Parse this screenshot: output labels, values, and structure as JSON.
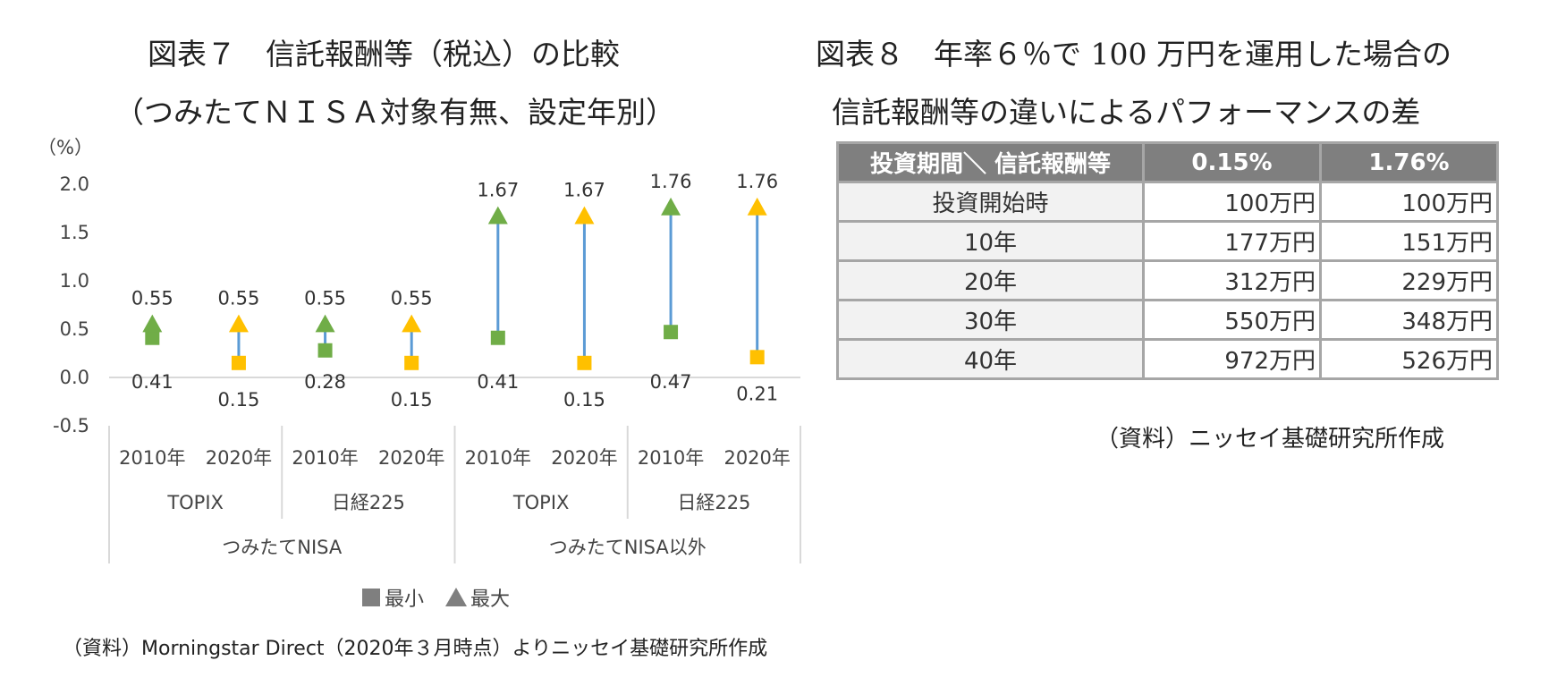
{
  "left_figure": {
    "title_line1": "図表７　信託報酬等（税込）の比較",
    "title_line2": "（つみたてＮＩＳＡ対象有無、設定年別）"
  },
  "right_figure": {
    "title_line1": "図表８　年率６％で 100 万円を運用した場合の",
    "title_line2": "信託報酬等の違いによるパフォーマンスの差"
  },
  "chart_data": {
    "type": "scatter",
    "title": "図表７　信託報酬等（税込）の比較（つみたてＮＩＳＡ対象有無、設定年別）",
    "yunit": "（%）",
    "ylim": [
      -0.5,
      2.0
    ],
    "yticks": [
      "2.0",
      "1.5",
      "1.0",
      "0.5",
      "0.0",
      "-0.5"
    ],
    "ytick_values": [
      2.0,
      1.5,
      1.0,
      0.5,
      0.0,
      -0.5
    ],
    "negative_tick_color": "#c00000",
    "grid": false,
    "legend_position": "bottom",
    "legend": [
      {
        "marker": "square",
        "label": "最小"
      },
      {
        "marker": "triangle",
        "label": "最大"
      }
    ],
    "categories": [
      {
        "year": "2010年",
        "index": "TOPIX",
        "group": "つみたてNISA",
        "min": 0.41,
        "max": 0.55,
        "min_label": "0.41",
        "max_label": "0.55",
        "color": "#70ad47"
      },
      {
        "year": "2020年",
        "index": "TOPIX",
        "group": "つみたてNISA",
        "min": 0.15,
        "max": 0.55,
        "min_label": "0.15",
        "max_label": "0.55",
        "color": "#ffc000"
      },
      {
        "year": "2010年",
        "index": "日経225",
        "group": "つみたてNISA",
        "min": 0.28,
        "max": 0.55,
        "min_label": "0.28",
        "max_label": "0.55",
        "color": "#70ad47"
      },
      {
        "year": "2020年",
        "index": "日経225",
        "group": "つみたてNISA",
        "min": 0.15,
        "max": 0.55,
        "min_label": "0.15",
        "max_label": "0.55",
        "color": "#ffc000"
      },
      {
        "year": "2010年",
        "index": "TOPIX",
        "group": "つみたてNISA以外",
        "min": 0.41,
        "max": 1.67,
        "min_label": "0.41",
        "max_label": "1.67",
        "color": "#70ad47"
      },
      {
        "year": "2020年",
        "index": "TOPIX",
        "group": "つみたてNISA以外",
        "min": 0.15,
        "max": 1.67,
        "min_label": "0.15",
        "max_label": "1.67",
        "color": "#ffc000"
      },
      {
        "year": "2010年",
        "index": "日経225",
        "group": "つみたてNISA以外",
        "min": 0.47,
        "max": 1.76,
        "min_label": "0.47",
        "max_label": "1.76",
        "color": "#70ad47"
      },
      {
        "year": "2020年",
        "index": "日経225",
        "group": "つみたてNISA以外",
        "min": 0.21,
        "max": 1.76,
        "min_label": "0.21",
        "max_label": "1.76",
        "color": "#ffc000"
      }
    ],
    "index_groups": [
      "TOPIX",
      "日経225",
      "TOPIX",
      "日経225"
    ],
    "outer_groups": [
      "つみたてNISA",
      "つみたてNISA以外"
    ],
    "connector_color": "#5b9bd5"
  },
  "table": {
    "header": [
      "投資期間＼ 信託報酬等",
      "0.15%",
      "1.76%"
    ],
    "rows": [
      [
        "投資開始時",
        "100万円",
        "100万円"
      ],
      [
        "10年",
        "177万円",
        "151万円"
      ],
      [
        "20年",
        "312万円",
        "229万円"
      ],
      [
        "30年",
        "550万円",
        "348万円"
      ],
      [
        "40年",
        "972万円",
        "526万円"
      ]
    ],
    "source": "（資料）ニッセイ基礎研究所作成"
  },
  "footer_source": "（資料）Morningstar Direct（2020年３月時点）よりニッセイ基礎研究所作成"
}
